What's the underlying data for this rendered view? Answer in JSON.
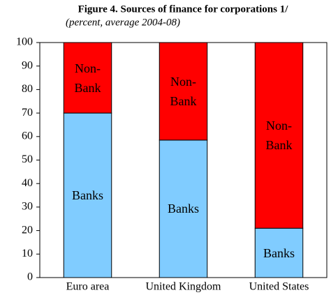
{
  "chart_data": {
    "type": "stacked-bar",
    "title": "Figure 4. Sources of finance for corporations 1/",
    "subtitle": "(percent, average 2004-08)",
    "categories": [
      "Euro area",
      "United Kingdom",
      "United States"
    ],
    "series": [
      {
        "name": "Banks",
        "color": "#80ccff",
        "values": [
          70,
          58.5,
          21
        ]
      },
      {
        "name": "Non-Bank",
        "color": "#ff0000",
        "values": [
          30,
          41.5,
          79
        ]
      }
    ],
    "ylim": [
      0,
      100
    ],
    "yticks": [
      0,
      10,
      20,
      30,
      40,
      50,
      60,
      70,
      80,
      90,
      100
    ]
  }
}
